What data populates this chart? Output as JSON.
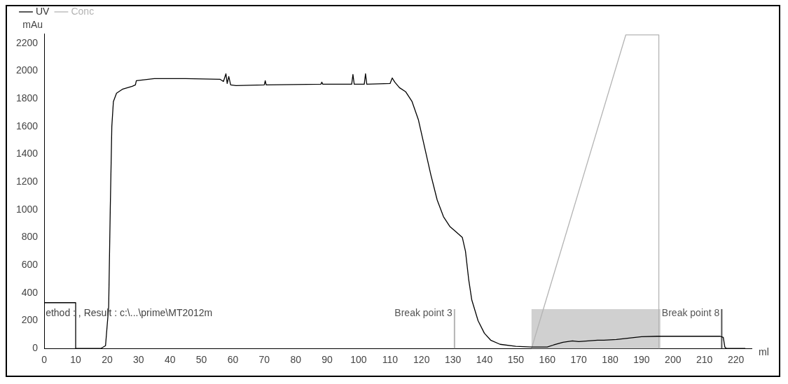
{
  "chart_data": {
    "type": "line",
    "xlabel": "ml",
    "ylabel": "mAu",
    "xlim": [
      0,
      225
    ],
    "ylim": [
      0,
      2270
    ],
    "xticks": [
      0,
      10,
      20,
      30,
      40,
      50,
      60,
      70,
      80,
      90,
      100,
      110,
      120,
      130,
      140,
      150,
      160,
      170,
      180,
      190,
      200,
      210,
      220
    ],
    "yticks": [
      0,
      200,
      400,
      600,
      800,
      1000,
      1200,
      1400,
      1600,
      1800,
      2000,
      2200
    ],
    "grid": false,
    "legend": "top left",
    "marker": "none",
    "line_style": "solid",
    "series": [
      {
        "name": "UV",
        "color": "#000000",
        "x": [
          0,
          10,
          10,
          18,
          19.5,
          20.5,
          21,
          21.5,
          22,
          23,
          25,
          28,
          29,
          29.3,
          35,
          45,
          56,
          57,
          57.8,
          58.2,
          58.7,
          59.3,
          61,
          70,
          70.3,
          70.6,
          88,
          88.3,
          88.6,
          97.8,
          98.2,
          98.6,
          101.8,
          102.2,
          102.6,
          110,
          110.7,
          111.5,
          113,
          115,
          117,
          119,
          121,
          123,
          125,
          127,
          129,
          131,
          133,
          134,
          135,
          136,
          138,
          140,
          142,
          145,
          150,
          155,
          160,
          162,
          165,
          168,
          170,
          173,
          176,
          178,
          182,
          186,
          190,
          195,
          215,
          216,
          216.5,
          217,
          223
        ],
        "values": [
          330,
          330,
          0,
          0,
          20,
          300,
          1000,
          1600,
          1780,
          1840,
          1870,
          1890,
          1900,
          1930,
          1945,
          1945,
          1940,
          1925,
          1980,
          1910,
          1960,
          1900,
          1895,
          1900,
          1930,
          1900,
          1905,
          1920,
          1905,
          1905,
          1975,
          1905,
          1905,
          1980,
          1905,
          1910,
          1950,
          1920,
          1880,
          1850,
          1780,
          1650,
          1450,
          1250,
          1070,
          950,
          880,
          840,
          800,
          700,
          500,
          350,
          200,
          110,
          60,
          30,
          15,
          10,
          10,
          25,
          45,
          55,
          50,
          55,
          60,
          60,
          65,
          75,
          85,
          88,
          88,
          80,
          10,
          0,
          0
        ]
      },
      {
        "name": "Conc",
        "color": "#b4b4b4",
        "x": [
          155,
          185,
          195.5,
          195.5
        ],
        "values": [
          0,
          2261,
          2261,
          0
        ]
      }
    ],
    "ref_lines": [
      {
        "axis": "x",
        "value": 130.5,
        "label": "Break point 3",
        "color": "#b4b4b4"
      },
      {
        "axis": "x",
        "value": 215.5,
        "label": "Break point 8",
        "color": "#555555"
      }
    ],
    "bands": [
      {
        "axis": "x",
        "from": 155,
        "to": 196,
        "color": "#d0d0d0"
      }
    ],
    "annotations": [
      "ethod : , Result : c:\\...\\prime\\MT2012m"
    ]
  }
}
